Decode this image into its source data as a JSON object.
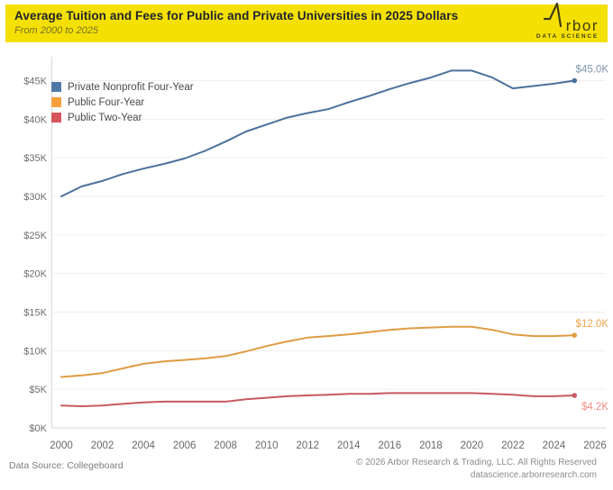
{
  "header": {
    "title": "Average Tuition and Fees for Public and Private Universities in 2025 Dollars",
    "subtitle": "From 2000 to 2025",
    "banner_color": "#F5E003",
    "logo_text": "rbor",
    "logo_tagline": "DATA SCIENCE",
    "logo_color": "#3E3C14"
  },
  "chart_data": {
    "type": "line",
    "title": "Average Tuition and Fees for Public and Private Universities in 2025 Dollars",
    "subtitle": "From 2000 to 2025",
    "unit": "USD thousands, 2025 dollars",
    "grid": "horizontal",
    "legend_position": "top-left-inside",
    "xlim": [
      2000,
      2026
    ],
    "ylim": [
      0,
      47
    ],
    "x": [
      2000,
      2001,
      2002,
      2003,
      2004,
      2005,
      2006,
      2007,
      2008,
      2009,
      2010,
      2011,
      2012,
      2013,
      2014,
      2015,
      2016,
      2017,
      2018,
      2019,
      2020,
      2021,
      2022,
      2023,
      2024,
      2025
    ],
    "x_ticks": [
      2000,
      2002,
      2004,
      2006,
      2008,
      2010,
      2012,
      2014,
      2016,
      2018,
      2020,
      2022,
      2024,
      2026
    ],
    "y_ticks": [
      {
        "value": 0,
        "label": "$0K"
      },
      {
        "value": 5,
        "label": "$5K"
      },
      {
        "value": 10,
        "label": "$10K"
      },
      {
        "value": 15,
        "label": "$15K"
      },
      {
        "value": 20,
        "label": "$20K"
      },
      {
        "value": 25,
        "label": "$25K"
      },
      {
        "value": 30,
        "label": "$30K"
      },
      {
        "value": 35,
        "label": "$35K"
      },
      {
        "value": 40,
        "label": "$40K"
      },
      {
        "value": 45,
        "label": "$45K"
      }
    ],
    "series": [
      {
        "name": "Private Nonprofit Four-Year",
        "line_color": "#4C719B",
        "swatch_color": "#4E79A7",
        "label_color": "#7E95AB",
        "end_label": "$45.0K",
        "end_label_dy": -9,
        "values": [
          30.0,
          31.3,
          32.0,
          32.9,
          33.6,
          34.2,
          34.9,
          35.9,
          37.1,
          38.4,
          39.3,
          40.2,
          40.8,
          41.3,
          42.2,
          43.0,
          43.9,
          44.7,
          45.4,
          46.3,
          46.3,
          45.4,
          44.0,
          44.3,
          44.6,
          45.0
        ]
      },
      {
        "name": "Public Four-Year",
        "line_color": "#E09C43",
        "swatch_color": "#F7A13C",
        "label_color": "#F0A44C",
        "end_label": "$12.0K",
        "end_label_dy": -9,
        "values": [
          6.6,
          6.8,
          7.1,
          7.7,
          8.3,
          8.6,
          8.8,
          9.0,
          9.3,
          9.9,
          10.6,
          11.2,
          11.7,
          11.9,
          12.1,
          12.4,
          12.7,
          12.9,
          13.0,
          13.1,
          13.1,
          12.7,
          12.1,
          11.9,
          11.9,
          12.0
        ]
      },
      {
        "name": "Public Two-Year",
        "line_color": "#C75A60",
        "swatch_color": "#D6555C",
        "label_color": "#EF8E86",
        "end_label": "$4.2K",
        "end_label_dy": 16,
        "values": [
          2.9,
          2.8,
          2.9,
          3.1,
          3.3,
          3.4,
          3.4,
          3.4,
          3.4,
          3.7,
          3.9,
          4.1,
          4.2,
          4.3,
          4.4,
          4.4,
          4.5,
          4.5,
          4.5,
          4.5,
          4.5,
          4.4,
          4.3,
          4.1,
          4.1,
          4.2
        ]
      }
    ]
  },
  "footer": {
    "source": "Data Source: Collegeboard",
    "copyright": "© 2026 Arbor Research & Trading, LLC. All Rights Reserved",
    "website": "datascience.arborresearch.com"
  }
}
